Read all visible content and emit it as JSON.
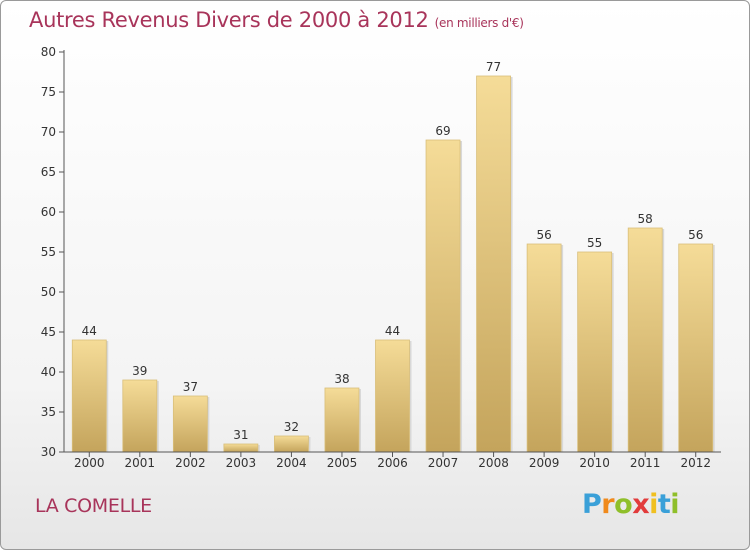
{
  "title": "Autres Revenus Divers de 2000 à 2012",
  "subtitle": "(en milliers d'€)",
  "commune": "LA COMELLE",
  "logo": {
    "letters": [
      "P",
      "r",
      "o",
      "x",
      "i",
      "t",
      "i"
    ],
    "colors": [
      "#3aa0d8",
      "#f08a1c",
      "#8fbf2a",
      "#e23b3b",
      "#f0c020",
      "#3aa0d8",
      "#8fbf2a"
    ]
  },
  "colors": {
    "bar_top": "#f5dc98",
    "bar_bottom": "#c4a45c",
    "text": "#333333",
    "title": "#a8345a"
  },
  "chart_data": {
    "type": "bar",
    "categories": [
      "2000",
      "2001",
      "2002",
      "2003",
      "2004",
      "2005",
      "2006",
      "2007",
      "2008",
      "2009",
      "2010",
      "2011",
      "2012"
    ],
    "values": [
      44,
      39,
      37,
      31,
      32,
      38,
      44,
      69,
      77,
      56,
      55,
      58,
      56
    ],
    "ylim": [
      30,
      80
    ],
    "yticks": [
      30,
      35,
      40,
      45,
      50,
      55,
      60,
      65,
      70,
      75,
      80
    ],
    "grid": false
  }
}
